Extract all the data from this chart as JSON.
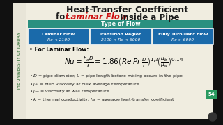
{
  "title_line1": "Heat-Transfer Coefficient",
  "title_line2_prefix": "for ",
  "title_line2_red": "Laminar Flow",
  "title_line2_suffix": " Inside a Pipe",
  "title_color": "#1a1a1a",
  "red_color": "#cc1111",
  "sidebar_text": "THE UNIVERSITY OF JORDAN",
  "sidebar_text_color": "#5a8a5a",
  "table_header": "Type of Flow",
  "table_header_bg": "#2a9080",
  "table_header_color": "#ffffff",
  "col1_title": "Laminar Flow",
  "col1_sub": "Re < 2100",
  "col2_title": "Transition Region",
  "col2_sub": "2100 < Re < 6000",
  "col3_title": "Fully Turbulent Flow",
  "col3_sub": "Re > 6000",
  "col_bg": "#1a6aaa",
  "col_text_color": "#ffffff",
  "page_num": "54",
  "page_bg": "#2a9a60",
  "outer_bg": "#1a1a1a",
  "main_bg": "#f0ede0",
  "sidebar_bg": "#2a2a2a"
}
